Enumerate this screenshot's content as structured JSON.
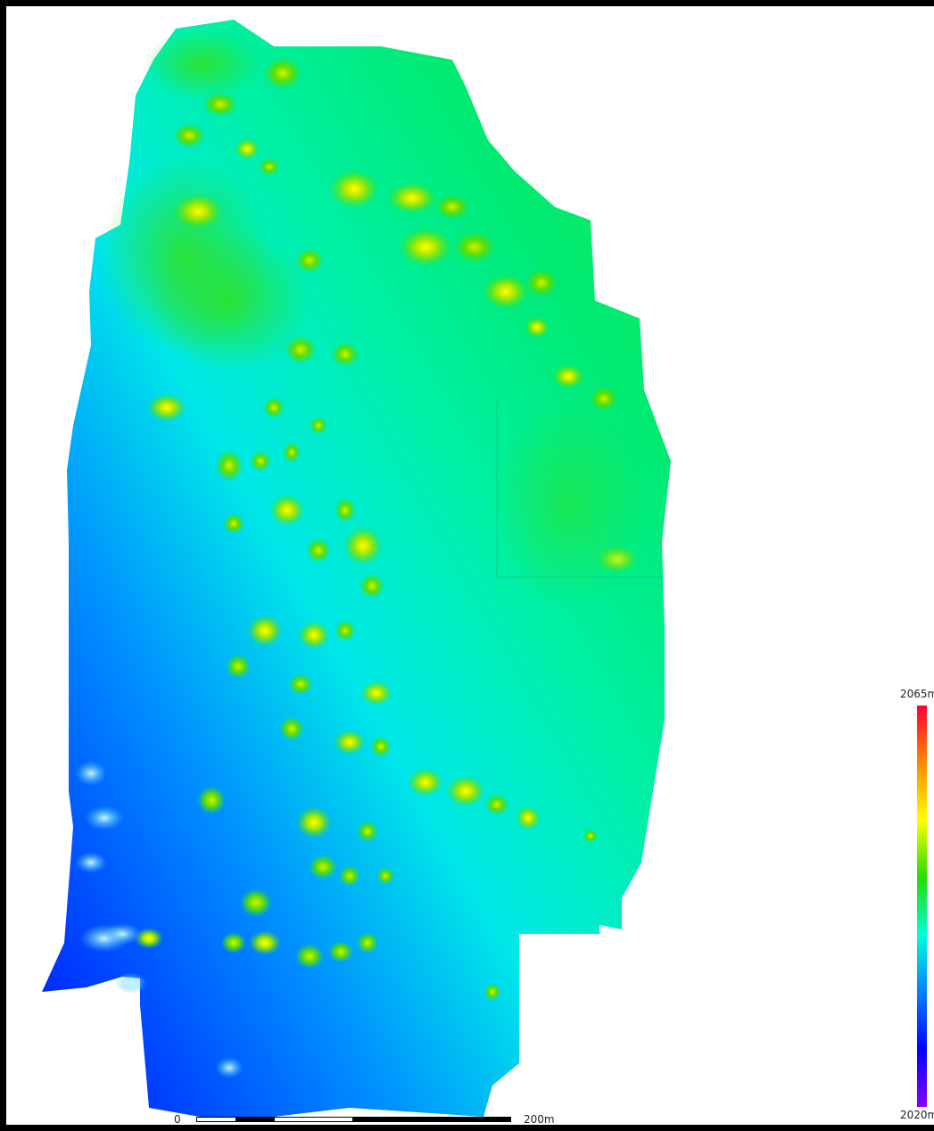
{
  "legend": {
    "max_label": "2065m",
    "min_label": "2020m",
    "colors": [
      "#ff0033",
      "#ff8800",
      "#ffff00",
      "#22dd00",
      "#00ffdd",
      "#0080ff",
      "#0000ff",
      "#8800ff"
    ]
  },
  "scale_bar": {
    "start_label": "0",
    "end_label": "200m"
  },
  "colors": {
    "frame": "#000000",
    "background": "#ffffff"
  }
}
